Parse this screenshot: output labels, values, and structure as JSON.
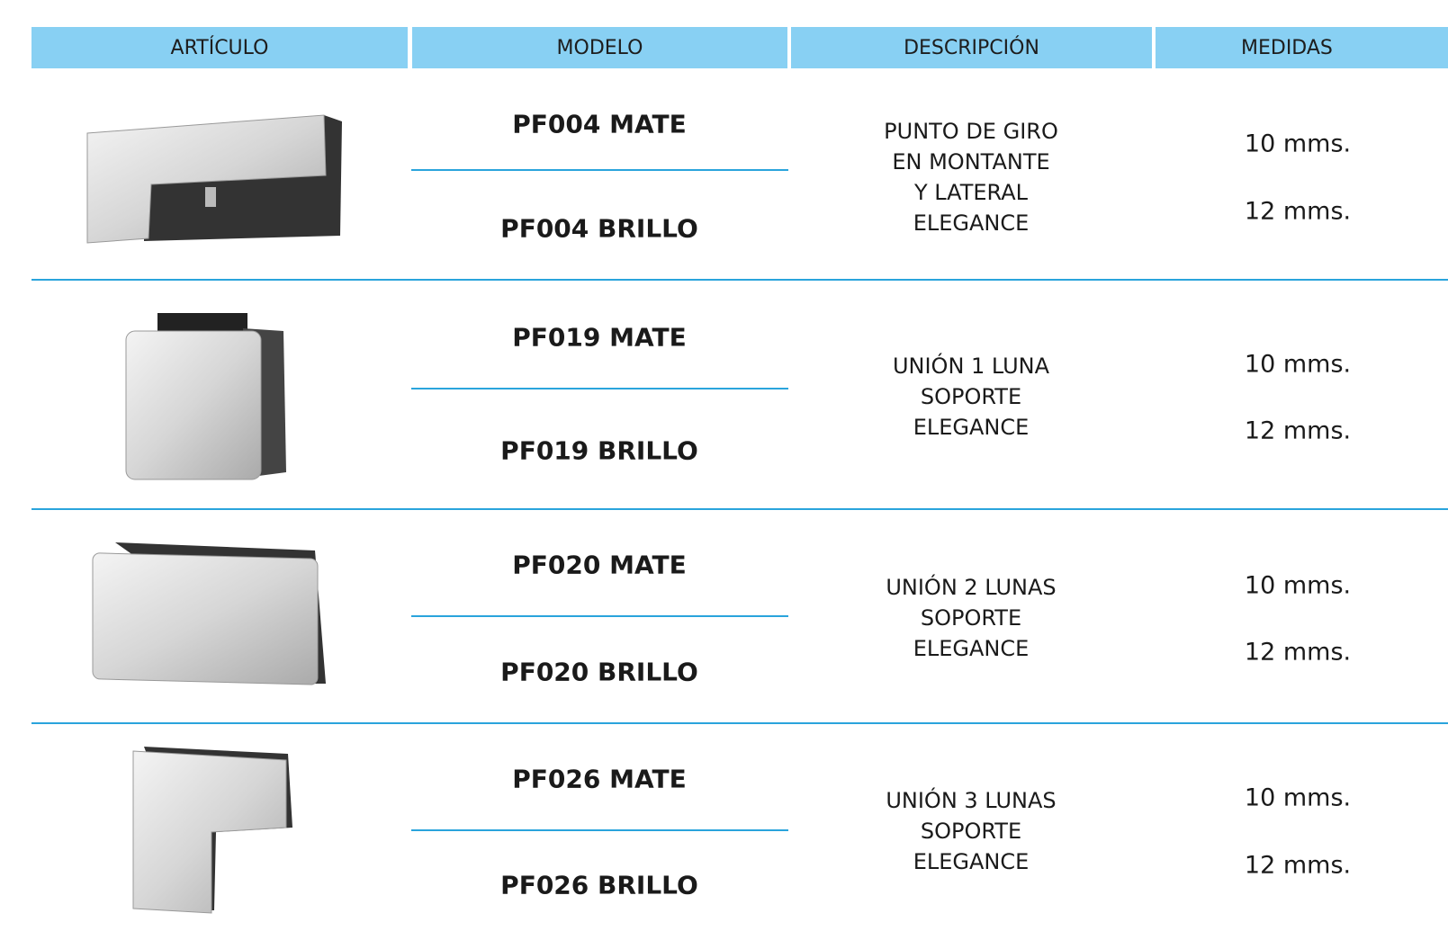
{
  "table": {
    "headers": [
      "ARTÍCULO",
      "MODELO",
      "DESCRIPCIÓN",
      "MEDIDAS"
    ],
    "rows": [
      {
        "models": [
          "PF004 MATE",
          "PF004 BRILLO"
        ],
        "description": [
          "PUNTO DE GIRO",
          "EN MONTANTE",
          "Y LATERAL",
          "ELEGANCE"
        ],
        "sizes": [
          "10 mms.",
          "12 mms."
        ]
      },
      {
        "models": [
          "PF019 MATE",
          "PF019 BRILLO"
        ],
        "description": [
          "UNIÓN 1 LUNA",
          "SOPORTE",
          "ELEGANCE"
        ],
        "sizes": [
          "10 mms.",
          "12 mms."
        ]
      },
      {
        "models": [
          "PF020 MATE",
          "PF020 BRILLO"
        ],
        "description": [
          "UNIÓN 2 LUNAS",
          "SOPORTE",
          "ELEGANCE"
        ],
        "sizes": [
          "10 mms.",
          "12 mms."
        ]
      },
      {
        "models": [
          "PF026 MATE",
          "PF026 BRILLO"
        ],
        "description": [
          "UNIÓN 3 LUNAS",
          "SOPORTE",
          "ELEGANCE"
        ],
        "sizes": [
          "10 mms.",
          "12 mms."
        ]
      }
    ]
  }
}
